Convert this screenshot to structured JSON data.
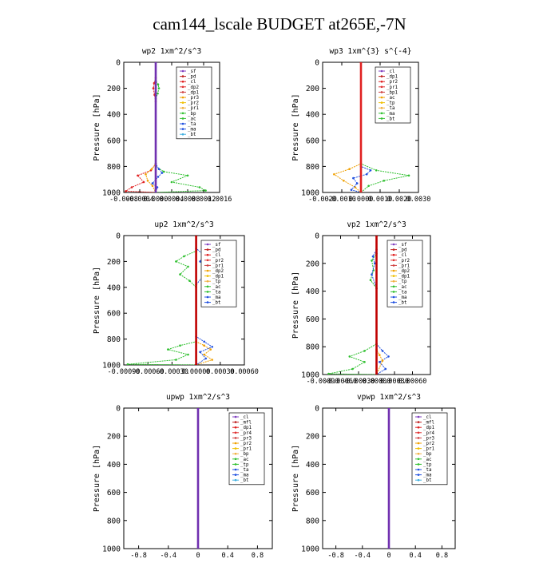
{
  "figure": {
    "title": "cam144_lscale  BUDGET at265E,-7N"
  },
  "chart_data": [
    {
      "type": "line",
      "title": "wp2   1xm^2/s^3",
      "ylabel": "Pressure [hPa]",
      "xlim": [
        -0.0008,
        0.0016
      ],
      "ylim": [
        0,
        1000
      ],
      "xticks": [
        "-0.0008",
        "-0.0004",
        "0.0000",
        "0.0004",
        "0.0008",
        "0.0012",
        "0.0016"
      ],
      "yticks": [
        "0",
        "200",
        "400",
        "600",
        "800",
        "1000"
      ],
      "legend": [
        "_sf",
        "_pd",
        "_cl",
        "_dp2",
        "_dp1",
        "_pr3",
        "_pr2",
        "_pr1",
        "_bp",
        "_ac",
        "_ta",
        "_ma",
        "_bt"
      ],
      "legend_position": "top-right",
      "series": [
        {
          "name": "_dp1",
          "color": "#e02020",
          "points": [
            [
              0,
              0
            ],
            [
              0,
              120
            ],
            [
              -4e-05,
              160
            ],
            [
              -6e-05,
              200
            ],
            [
              -3e-05,
              250
            ],
            [
              0,
              300
            ],
            [
              0,
              780
            ],
            [
              -0.00012,
              830
            ],
            [
              -0.00045,
              870
            ],
            [
              -0.0003,
              920
            ],
            [
              -0.0006,
              960
            ],
            [
              -0.00075,
              990
            ],
            [
              0,
              1000
            ]
          ]
        },
        {
          "name": "_pr1",
          "color": "#f0a000",
          "points": [
            [
              0,
              0
            ],
            [
              0,
              780
            ],
            [
              -0.0001,
              820
            ],
            [
              -0.00025,
              860
            ],
            [
              -0.0002,
              910
            ],
            [
              -8e-05,
              950
            ],
            [
              0,
              1000
            ]
          ]
        },
        {
          "name": "_ac",
          "color": "#30c030",
          "points": [
            [
              0,
              0
            ],
            [
              0,
              140
            ],
            [
              6e-05,
              170
            ],
            [
              8e-05,
              200
            ],
            [
              5e-05,
              240
            ],
            [
              0,
              280
            ],
            [
              0,
              800
            ],
            [
              0.0002,
              840
            ],
            [
              0.0008,
              870
            ],
            [
              0.0004,
              920
            ],
            [
              0.0011,
              960
            ],
            [
              0.00125,
              985
            ],
            [
              0,
              1000
            ]
          ]
        },
        {
          "name": "_bp",
          "color": "#2050e0",
          "points": [
            [
              0,
              0
            ],
            [
              0,
              780
            ],
            [
              8e-05,
              820
            ],
            [
              0.00016,
              850
            ],
            [
              6e-05,
              880
            ],
            [
              -8e-05,
              930
            ],
            [
              4e-05,
              960
            ],
            [
              0,
              1000
            ]
          ]
        },
        {
          "name": "_bt",
          "color": "#7030b0",
          "points": [
            [
              0,
              0
            ],
            [
              0,
              1000
            ]
          ]
        }
      ]
    },
    {
      "type": "line",
      "title": "wp3   1xm^{3} s^{-4}",
      "ylabel": "Pressure [hPa]",
      "xlim": [
        -0.002,
        0.003
      ],
      "ylim": [
        0,
        1000
      ],
      "xticks": [
        "-0.0020",
        "-0.0010",
        "0.0000",
        "0.0010",
        "0.0020",
        "0.0030"
      ],
      "yticks": [
        "0",
        "200",
        "400",
        "600",
        "800",
        "1000"
      ],
      "legend": [
        "_cl",
        "_dp1",
        "_pr2",
        "_pr1",
        "_bp1",
        "_ac",
        "_tp",
        "_ta",
        "_ma",
        "_bt"
      ],
      "legend_position": "top-right",
      "series": [
        {
          "name": "_pr1",
          "color": "#f0a000",
          "points": [
            [
              0,
              0
            ],
            [
              0,
              780
            ],
            [
              -0.0006,
              820
            ],
            [
              -0.0014,
              860
            ],
            [
              -0.0009,
              910
            ],
            [
              -0.0003,
              960
            ],
            [
              0,
              1000
            ]
          ]
        },
        {
          "name": "_ac",
          "color": "#30c030",
          "points": [
            [
              0,
              0
            ],
            [
              0,
              780
            ],
            [
              0.0008,
              830
            ],
            [
              0.0025,
              870
            ],
            [
              0.0012,
              910
            ],
            [
              0.0004,
              950
            ],
            [
              0,
              1000
            ]
          ]
        },
        {
          "name": "_bp1",
          "color": "#2050e0",
          "points": [
            [
              0,
              0
            ],
            [
              0,
              800
            ],
            [
              0.0005,
              830
            ],
            [
              0.0003,
              860
            ],
            [
              -0.0004,
              890
            ],
            [
              -0.0002,
              930
            ],
            [
              -0.0005,
              980
            ],
            [
              0,
              1000
            ]
          ]
        },
        {
          "name": "_cl",
          "color": "#e02020",
          "points": [
            [
              0,
              0
            ],
            [
              0,
              1000
            ]
          ]
        }
      ]
    },
    {
      "type": "line",
      "title": "up2   1xm^2/s^3",
      "ylabel": "Pressure [hPa]",
      "xlim": [
        -0.0009,
        0.0006
      ],
      "ylim": [
        0,
        1000
      ],
      "xticks": [
        "-0.00090",
        "-0.00060",
        "-0.00030",
        "0.00000",
        "0.00030",
        "0.00060"
      ],
      "yticks": [
        "0",
        "200",
        "400",
        "600",
        "800",
        "1000"
      ],
      "legend": [
        "_sf",
        "_pd",
        "_cl",
        "_pr2",
        "_pr1",
        "_dp2",
        "_dp1",
        "_tp",
        "_ac",
        "_ta",
        "_ma",
        "_bt"
      ],
      "legend_position": "top-right",
      "series": [
        {
          "name": "_ac",
          "color": "#30c030",
          "points": [
            [
              0,
              0
            ],
            [
              0,
              120
            ],
            [
              -0.00015,
              160
            ],
            [
              -0.00025,
              200
            ],
            [
              -0.0001,
              240
            ],
            [
              -0.0002,
              300
            ],
            [
              -8e-05,
              350
            ],
            [
              0,
              400
            ],
            [
              0,
              820
            ],
            [
              -0.0002,
              850
            ],
            [
              -0.00035,
              880
            ],
            [
              -0.0001,
              920
            ],
            [
              -0.00025,
              960
            ],
            [
              -0.00085,
              995
            ],
            [
              0,
              1000
            ]
          ]
        },
        {
          "name": "_pr2",
          "color": "#f0a000",
          "points": [
            [
              0,
              0
            ],
            [
              0,
              820
            ],
            [
              0.0001,
              850
            ],
            [
              0.00018,
              880
            ],
            [
              0.0001,
              920
            ],
            [
              0.0002,
              960
            ],
            [
              0,
              1000
            ]
          ]
        },
        {
          "name": "_tp",
          "color": "#2050e0",
          "points": [
            [
              0,
              0
            ],
            [
              0,
              100
            ],
            [
              0.0001,
              150
            ],
            [
              5e-05,
              200
            ],
            [
              0.00015,
              260
            ],
            [
              8e-05,
              320
            ],
            [
              0,
              380
            ],
            [
              0,
              780
            ],
            [
              0.0001,
              820
            ],
            [
              0.0002,
              860
            ],
            [
              5e-05,
              900
            ],
            [
              0.00012,
              950
            ],
            [
              0,
              1000
            ]
          ]
        },
        {
          "name": "_cl",
          "color": "#c00000",
          "points": [
            [
              0,
              0
            ],
            [
              0,
              1000
            ]
          ]
        }
      ]
    },
    {
      "type": "line",
      "title": "vp2   1xm^2/s^3",
      "ylabel": "Pressure [hPa]",
      "xlim": [
        -0.0009,
        0.0009
      ],
      "ylim": [
        0,
        1000
      ],
      "xticks": [
        "-0.00090",
        "-0.00060",
        "-0.00030",
        "0.00000",
        "0.00030",
        "0.00060"
      ],
      "yticks": [
        "0",
        "200",
        "400",
        "600",
        "800",
        "1000"
      ],
      "legend": [
        "_sf",
        "_pd",
        "_cl",
        "_pr2",
        "_pr1",
        "_dp2",
        "_dp1",
        "_tp",
        "_ac",
        "_ta",
        "_ma",
        "_bt"
      ],
      "legend_position": "top-right",
      "series": [
        {
          "name": "_ac",
          "color": "#30c030",
          "points": [
            [
              0,
              0
            ],
            [
              0,
              130
            ],
            [
              -8e-05,
              180
            ],
            [
              -5e-05,
              250
            ],
            [
              -0.0001,
              320
            ],
            [
              0,
              380
            ],
            [
              0,
              780
            ],
            [
              -0.0002,
              830
            ],
            [
              -0.00045,
              870
            ],
            [
              -0.0002,
              910
            ],
            [
              -0.0004,
              960
            ],
            [
              -0.0008,
              995
            ],
            [
              0,
              1000
            ]
          ]
        },
        {
          "name": "_tp",
          "color": "#2050e0",
          "points": [
            [
              0,
              0
            ],
            [
              0,
              100
            ],
            [
              -6e-05,
              150
            ],
            [
              -3e-05,
              200
            ],
            [
              -8e-05,
              280
            ],
            [
              0,
              380
            ],
            [
              0,
              780
            ],
            [
              0.0001,
              830
            ],
            [
              0.0002,
              870
            ],
            [
              5e-05,
              910
            ],
            [
              0.00015,
              960
            ],
            [
              0,
              1000
            ]
          ]
        },
        {
          "name": "_pr2",
          "color": "#f0a000",
          "points": [
            [
              0,
              0
            ],
            [
              0,
              820
            ],
            [
              5e-05,
              860
            ],
            [
              0.0001,
              900
            ],
            [
              0,
              1000
            ]
          ]
        },
        {
          "name": "_cl",
          "color": "#c00000",
          "points": [
            [
              0,
              0
            ],
            [
              0,
              1000
            ]
          ]
        }
      ]
    },
    {
      "type": "line",
      "title": "upwp   1xm^2/s^3",
      "ylabel": "Pressure [hPa]",
      "xlim": [
        -1.0,
        1.0
      ],
      "ylim": [
        0,
        1000
      ],
      "xticks": [
        "-0.8",
        "-0.4",
        "0",
        "0.4",
        "0.8"
      ],
      "yticks": [
        "0",
        "200",
        "400",
        "600",
        "800",
        "1000"
      ],
      "legend": [
        "_cl",
        "_mfl",
        "_dp1",
        "_pr4",
        "_pr3",
        "_pr2",
        "_pr1",
        "_bp",
        "_ac",
        "_tp",
        "_ta",
        "_ma",
        "_bt"
      ],
      "legend_position": "top-right",
      "series": [
        {
          "name": "_bt",
          "color": "#7030b0",
          "points": [
            [
              0,
              0
            ],
            [
              0,
              1000
            ]
          ]
        }
      ]
    },
    {
      "type": "line",
      "title": "vpwp   1xm^2/s^3",
      "ylabel": "Pressure [hPa]",
      "xlim": [
        -1.0,
        1.0
      ],
      "ylim": [
        0,
        1000
      ],
      "xticks": [
        "-0.8",
        "-0.4",
        "0",
        "0.4",
        "0.8"
      ],
      "yticks": [
        "0",
        "200",
        "400",
        "600",
        "800",
        "1000"
      ],
      "legend": [
        "_cl",
        "_mfl",
        "_dp1",
        "_pr4",
        "_pr3",
        "_pr2",
        "_pr1",
        "_bp",
        "_ac",
        "_tp",
        "_ta",
        "_ma",
        "_bt"
      ],
      "legend_position": "top-right",
      "series": [
        {
          "name": "_bt",
          "color": "#7030b0",
          "points": [
            [
              0,
              0
            ],
            [
              0,
              1000
            ]
          ]
        }
      ]
    }
  ]
}
